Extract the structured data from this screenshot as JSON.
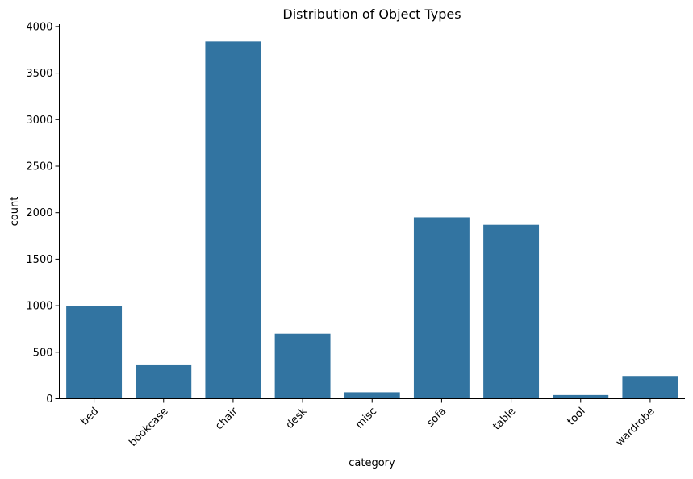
{
  "chart_data": {
    "type": "bar",
    "title": "Distribution of Object Types",
    "xlabel": "category",
    "ylabel": "count",
    "categories": [
      "bed",
      "bookcase",
      "chair",
      "desk",
      "misc",
      "sofa",
      "table",
      "tool",
      "wardrobe"
    ],
    "values": [
      1000,
      360,
      3840,
      700,
      70,
      1950,
      1870,
      40,
      245
    ],
    "ylim": [
      0,
      4025
    ],
    "yticks": [
      0,
      500,
      1000,
      1500,
      2000,
      2500,
      3000,
      3500,
      4000
    ],
    "xtick_rotation_deg": 45,
    "grid": false,
    "legend": "none",
    "colors": {
      "bar": "#3274a1",
      "axis": "#000000",
      "background": "#ffffff"
    }
  }
}
